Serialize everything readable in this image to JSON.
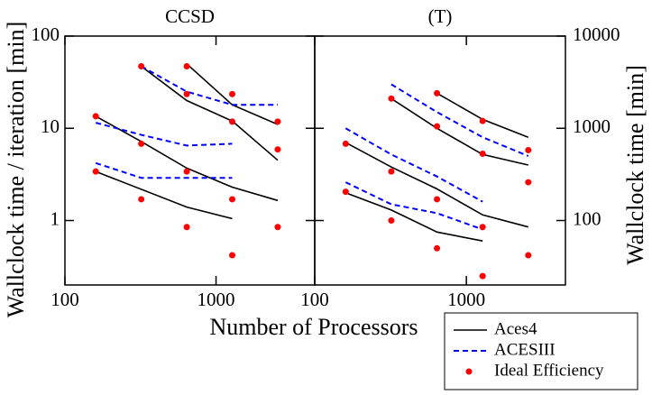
{
  "chart_data": [
    {
      "type": "line",
      "title": "CCSD",
      "xlabel": "Number of Processors",
      "ylabel": "Wallclock time / iteration [min]",
      "log_x": true,
      "log_y": true,
      "xlim": [
        100,
        4500
      ],
      "xticks": [
        100,
        1000
      ],
      "ylim": [
        0.2,
        100
      ],
      "yticks": [
        1,
        10,
        100
      ],
      "series": [
        {
          "name": "Aces4",
          "color": "#000000",
          "style": "solid",
          "lines": [
            {
              "x": [
                160,
                320,
                640,
                1280,
                2560
              ],
              "values": [
                13.5,
                7.2,
                3.7,
                2.3,
                1.65
              ]
            },
            {
              "x": [
                160,
                640,
                1280
              ],
              "values": [
                3.4,
                1.4,
                1.05
              ]
            },
            {
              "x": [
                320,
                640,
                1280,
                2560
              ],
              "values": [
                47,
                20,
                12,
                4.5
              ]
            },
            {
              "x": [
                640,
                1280,
                2560
              ],
              "values": [
                50,
                18,
                11
              ]
            }
          ]
        },
        {
          "name": "ACESIII",
          "color": "#0000ff",
          "style": "dashed",
          "lines": [
            {
              "x": [
                160,
                320,
                640,
                1280
              ],
              "values": [
                4.2,
                2.9,
                2.9,
                2.9
              ]
            },
            {
              "x": [
                160,
                320,
                640,
                1280
              ],
              "values": [
                11.5,
                8.5,
                6.5,
                6.8
              ]
            },
            {
              "x": [
                320,
                640,
                1280,
                2560
              ],
              "values": [
                47,
                25,
                18,
                18
              ]
            }
          ]
        },
        {
          "name": "Ideal Efficiency",
          "color": "#ff0000",
          "style": "dots",
          "lines": [
            {
              "x": [
                160,
                160,
                320,
                320,
                320,
                640,
                640,
                640,
                640,
                1280,
                1280,
                1280,
                1280,
                2560,
                2560,
                2560
              ],
              "values": [
                13.5,
                3.4,
                47,
                6.8,
                1.7,
                47,
                23.5,
                3.4,
                0.85,
                23.5,
                11.8,
                1.7,
                0.42,
                11.8,
                5.9,
                0.85
              ]
            }
          ]
        }
      ]
    },
    {
      "type": "line",
      "title": "(T)",
      "y2label": "Wallclock time [min]",
      "log_x": true,
      "log_y": true,
      "xlim": [
        100,
        4500
      ],
      "xticks": [
        100,
        1000
      ],
      "y2lim": [
        20,
        10000
      ],
      "y2ticks": [
        100,
        1000,
        10000
      ],
      "series": [
        {
          "color": "#000000",
          "style": "solid",
          "axis": "y2",
          "lines": [
            {
              "x": [
                160,
                320,
                640,
                1280,
                2560
              ],
              "values": [
                700,
                380,
                220,
                115,
                85
              ]
            },
            {
              "x": [
                160,
                320,
                640,
                1280
              ],
              "values": [
                200,
                130,
                75,
                60
              ]
            },
            {
              "x": [
                320,
                640,
                1280,
                2560
              ],
              "values": [
                2100,
                1000,
                520,
                400
              ]
            },
            {
              "x": [
                640,
                1280,
                2560
              ],
              "values": [
                2400,
                1250,
                800
              ]
            }
          ]
        },
        {
          "color": "#0000ff",
          "style": "dashed",
          "axis": "y2",
          "lines": [
            {
              "x": [
                160,
                320,
                640,
                1280
              ],
              "values": [
                260,
                150,
                120,
                80
              ]
            },
            {
              "x": [
                160,
                320,
                640,
                1280
              ],
              "values": [
                1000,
                520,
                300,
                160
              ]
            },
            {
              "x": [
                320,
                640,
                1280,
                2560
              ],
              "values": [
                3000,
                1500,
                800,
                500
              ]
            }
          ]
        },
        {
          "color": "#ff0000",
          "style": "dots",
          "axis": "y2",
          "lines": [
            {
              "x": [
                160,
                160,
                320,
                320,
                320,
                640,
                640,
                640,
                640,
                1280,
                1280,
                1280,
                1280,
                2560,
                2560,
                2560
              ],
              "values": [
                680,
                205,
                2100,
                340,
                100,
                2400,
                1050,
                170,
                50,
                1200,
                530,
                85,
                25,
                580,
                260,
                42
              ]
            }
          ]
        }
      ]
    }
  ]
}
